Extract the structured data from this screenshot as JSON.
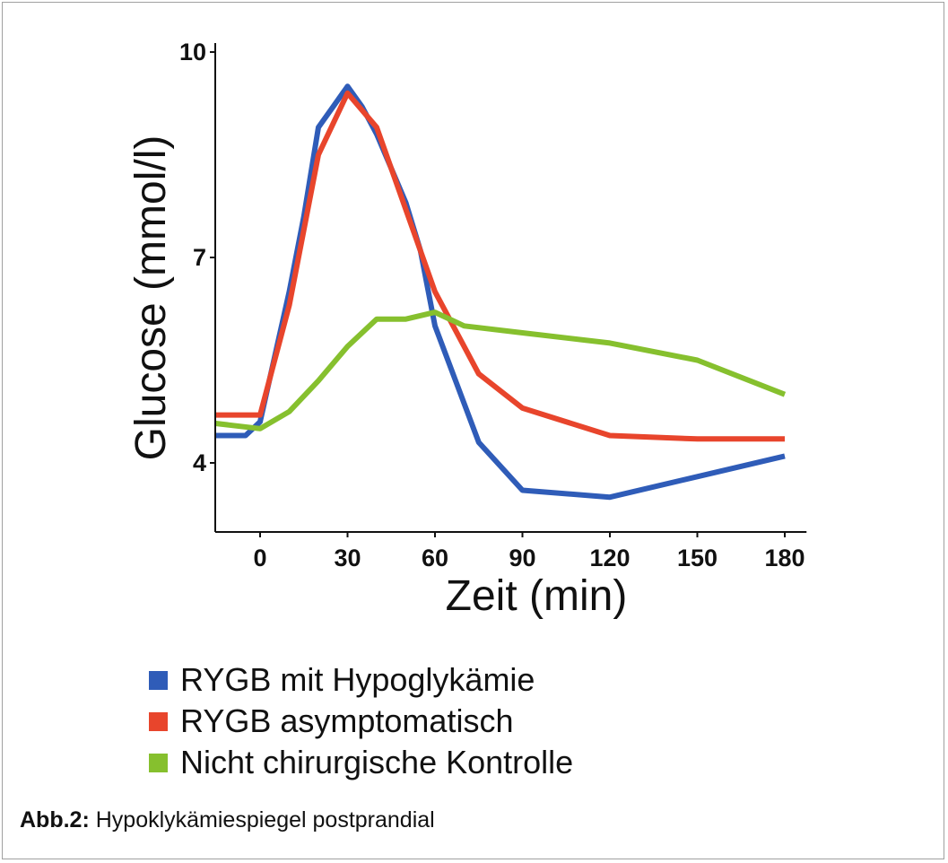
{
  "chart_data": {
    "type": "line",
    "xlabel": "Zeit (min)",
    "ylabel": "Glucose (mmol/l)",
    "x_ticks": [
      0,
      30,
      60,
      90,
      120,
      150,
      180
    ],
    "y_ticks": [
      4,
      7,
      10
    ],
    "xlim": [
      -15,
      185
    ],
    "ylim": [
      3.0,
      10.0
    ],
    "grid": false,
    "legend_position": "bottom",
    "series": [
      {
        "name": "RYGB mit Hypoglykämie",
        "color": "#2f5cb8",
        "x": [
          -20,
          -5,
          0,
          10,
          15,
          20,
          25,
          30,
          35,
          40,
          45,
          50,
          55,
          60,
          75,
          90,
          120,
          150,
          180
        ],
        "y": [
          4.4,
          4.4,
          4.6,
          6.5,
          7.6,
          8.9,
          9.2,
          9.5,
          9.2,
          8.8,
          8.3,
          7.8,
          7.1,
          6.0,
          4.3,
          3.6,
          3.5,
          3.8,
          4.1
        ]
      },
      {
        "name": "RYGB asymptomatisch",
        "color": "#e8452c",
        "x": [
          -20,
          0,
          10,
          20,
          30,
          40,
          50,
          60,
          75,
          90,
          120,
          150,
          180
        ],
        "y": [
          4.7,
          4.7,
          6.3,
          8.5,
          9.4,
          8.9,
          7.7,
          6.5,
          5.3,
          4.8,
          4.4,
          4.35,
          4.35
        ]
      },
      {
        "name": "Nicht chirurgische Kontrolle",
        "color": "#86c02e",
        "x": [
          -20,
          0,
          10,
          20,
          30,
          40,
          50,
          60,
          70,
          90,
          120,
          150,
          180
        ],
        "y": [
          4.6,
          4.5,
          4.75,
          5.2,
          5.7,
          6.1,
          6.1,
          6.2,
          6.0,
          5.9,
          5.75,
          5.5,
          5.0
        ]
      }
    ]
  },
  "caption": {
    "label": "Abb.2:",
    "text": "Hypoklykämiespiegel postprandial"
  }
}
